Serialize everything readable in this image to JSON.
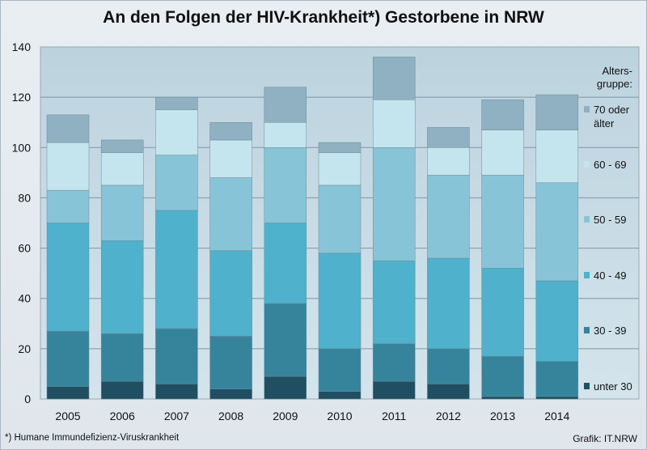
{
  "chart_data": {
    "type": "bar",
    "stacked": true,
    "title": "An den Folgen der HIV-Krankheit*)  Gestorbene in NRW",
    "categories": [
      "2005",
      "2006",
      "2007",
      "2008",
      "2009",
      "2010",
      "2011",
      "2012",
      "2013",
      "2014"
    ],
    "yticks": [
      0,
      20,
      40,
      60,
      80,
      100,
      120,
      140
    ],
    "ylim": [
      0,
      140
    ],
    "grid": true,
    "legend": {
      "title_lines": [
        "Alters-",
        "gruppe:"
      ],
      "position": "right"
    },
    "series": [
      {
        "name": "unter 30",
        "color": "#1f4f61",
        "values": [
          5,
          7,
          6,
          4,
          9,
          3,
          7,
          6,
          1,
          1
        ]
      },
      {
        "name": "30 - 39",
        "color": "#35849c",
        "values": [
          22,
          19,
          22,
          21,
          29,
          17,
          15,
          14,
          16,
          14
        ]
      },
      {
        "name": "40 - 49",
        "color": "#4fb1cb",
        "values": [
          43,
          37,
          47,
          34,
          32,
          38,
          33,
          36,
          35,
          32
        ]
      },
      {
        "name": "50 - 59",
        "color": "#88c4d7",
        "values": [
          13,
          22,
          22,
          29,
          30,
          27,
          45,
          33,
          37,
          39
        ]
      },
      {
        "name": "60 - 69",
        "color": "#c5e5ee",
        "values": [
          19,
          13,
          18,
          15,
          10,
          13,
          19,
          11,
          18,
          21
        ]
      },
      {
        "name": "70 oder älter",
        "name_lines": [
          "70 oder",
          "älter"
        ],
        "color": "#8fb1c1",
        "values": [
          11,
          5,
          5,
          7,
          14,
          4,
          17,
          8,
          12,
          14
        ]
      }
    ]
  },
  "footnote": "*) Humane Immundefizienz-Viruskrankheit",
  "credit": "Grafik: IT.NRW"
}
